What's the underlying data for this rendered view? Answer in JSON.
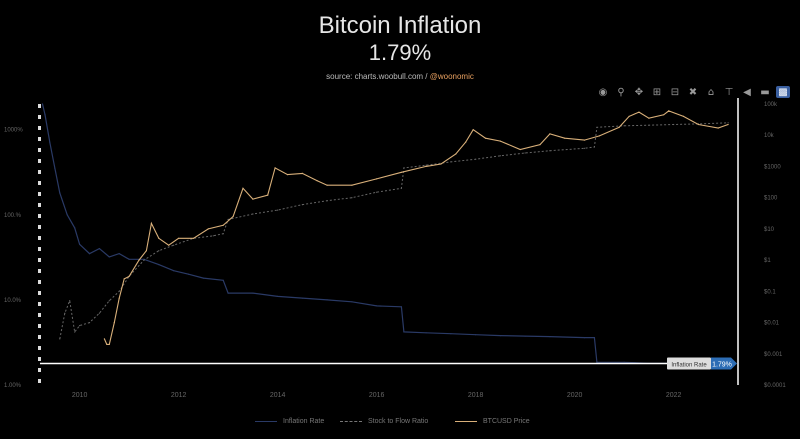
{
  "header": {
    "title": "Bitcoin Inflation",
    "subtitle": "1.79%",
    "source_prefix": "source: charts.woobull.com / ",
    "source_handle": "@woonomic"
  },
  "toolbar": {
    "icons": [
      "camera-icon",
      "zoom-icon",
      "pan-icon",
      "zoom-in-icon",
      "zoom-out-icon",
      "autoscale-icon",
      "home-icon",
      "spike-lines-icon",
      "hover-closest-icon",
      "hover-compare-icon",
      "plotly-logo-icon"
    ]
  },
  "hover_label": {
    "name": "Inflation Rate",
    "value": "1.79%"
  },
  "colors": {
    "inflation": "#2a3a66",
    "s2f": "#666666",
    "price": "#d9b07a",
    "crosshair": "#ffffff",
    "hover_box": "#2d6db5"
  },
  "legend": {
    "inflation": "Inflation Rate",
    "s2f": "Stock to Flow Ratio",
    "price": "BTCUSD Price"
  },
  "chart_data": {
    "type": "line",
    "title": "Bitcoin Inflation",
    "subtitle": "1.79%",
    "x_ticks": [
      "2010",
      "2012",
      "2014",
      "2016",
      "2018",
      "2020",
      "2022"
    ],
    "xlim": [
      2009.2,
      2023.3
    ],
    "y_left": {
      "scale": "log",
      "range": [
        1,
        2000
      ],
      "ticks": [
        "1.00%",
        "10.0%",
        "100.%",
        "1000%"
      ]
    },
    "y_right": {
      "scale": "log",
      "range": [
        0.0001,
        100000
      ],
      "ticks": [
        "100k",
        "10k",
        "$1000",
        "$100",
        "$10",
        "$1",
        "$0.1",
        "$0.01",
        "$0.001",
        "$0.0001"
      ]
    },
    "series": [
      {
        "name": "Inflation Rate",
        "axis": "left",
        "x": [
          2009.25,
          2009.3,
          2009.4,
          2009.5,
          2009.6,
          2009.75,
          2009.9,
          2010.0,
          2010.2,
          2010.4,
          2010.6,
          2010.8,
          2011.0,
          2011.3,
          2011.6,
          2011.9,
          2012.2,
          2012.5,
          2012.9,
          2013.0,
          2013.5,
          2014.0,
          2014.5,
          2015.0,
          2015.5,
          2016.0,
          2016.5,
          2016.55,
          2017.0,
          2017.5,
          2018.0,
          2018.5,
          2019.0,
          2019.5,
          2020.2,
          2020.4,
          2020.45,
          2021.0,
          2021.5,
          2022.0,
          2022.5,
          2023.1
        ],
        "values": [
          2000,
          1500,
          700,
          350,
          180,
          100,
          70,
          45,
          35,
          40,
          32,
          35,
          30,
          30,
          26,
          22,
          20,
          18,
          17,
          12,
          12,
          11,
          10.5,
          10,
          9.5,
          8.5,
          8.3,
          4.2,
          4.1,
          4.0,
          3.9,
          3.8,
          3.75,
          3.7,
          3.6,
          3.6,
          1.85,
          1.85,
          1.8,
          1.8,
          1.79,
          1.79
        ]
      },
      {
        "name": "Stock to Flow Ratio",
        "axis": "right",
        "x": [
          2009.6,
          2009.7,
          2009.8,
          2009.9,
          2010.0,
          2010.2,
          2010.4,
          2010.6,
          2010.8,
          2011.0,
          2011.3,
          2011.6,
          2011.9,
          2012.3,
          2012.7,
          2012.9,
          2013.0,
          2013.5,
          2014.0,
          2014.5,
          2015.0,
          2015.5,
          2016.0,
          2016.5,
          2016.55,
          2017.0,
          2017.5,
          2018.0,
          2018.5,
          2019.0,
          2019.5,
          2020.2,
          2020.4,
          2020.45,
          2021.0,
          2021.5,
          2022.0,
          2022.5,
          2023.1
        ],
        "values": [
          0.003,
          0.02,
          0.05,
          0.005,
          0.008,
          0.01,
          0.02,
          0.05,
          0.1,
          0.3,
          1.0,
          2.0,
          3.0,
          5,
          6,
          7,
          20,
          30,
          40,
          60,
          80,
          100,
          150,
          200,
          900,
          1100,
          1400,
          1700,
          2200,
          2700,
          3200,
          3800,
          4200,
          18000,
          20000,
          21000,
          22000,
          23000,
          25000
        ]
      },
      {
        "name": "BTCUSD Price",
        "axis": "right",
        "x": [
          2010.5,
          2010.55,
          2010.6,
          2010.7,
          2010.8,
          2010.9,
          2011.0,
          2011.2,
          2011.35,
          2011.45,
          2011.6,
          2011.8,
          2012.0,
          2012.3,
          2012.6,
          2012.9,
          2013.1,
          2013.3,
          2013.5,
          2013.8,
          2013.95,
          2014.2,
          2014.5,
          2014.8,
          2015.0,
          2015.5,
          2016.0,
          2016.5,
          2017.0,
          2017.3,
          2017.6,
          2017.8,
          2017.95,
          2018.2,
          2018.5,
          2018.9,
          2019.3,
          2019.5,
          2019.8,
          2020.2,
          2020.5,
          2020.9,
          2021.1,
          2021.3,
          2021.5,
          2021.8,
          2021.9,
          2022.2,
          2022.5,
          2022.9,
          2023.1
        ],
        "values": [
          0.003,
          0.002,
          0.002,
          0.01,
          0.06,
          0.25,
          0.3,
          1.0,
          2.0,
          15,
          5,
          3,
          5,
          5,
          10,
          13,
          25,
          200,
          90,
          120,
          900,
          550,
          600,
          350,
          250,
          250,
          400,
          650,
          1000,
          1200,
          2500,
          6000,
          15000,
          8000,
          6500,
          3500,
          5000,
          11000,
          8000,
          7000,
          9500,
          18000,
          40000,
          55000,
          35000,
          45000,
          60000,
          40000,
          22000,
          17000,
          22000
        ]
      }
    ],
    "annotations": [
      "1.79%"
    ]
  }
}
